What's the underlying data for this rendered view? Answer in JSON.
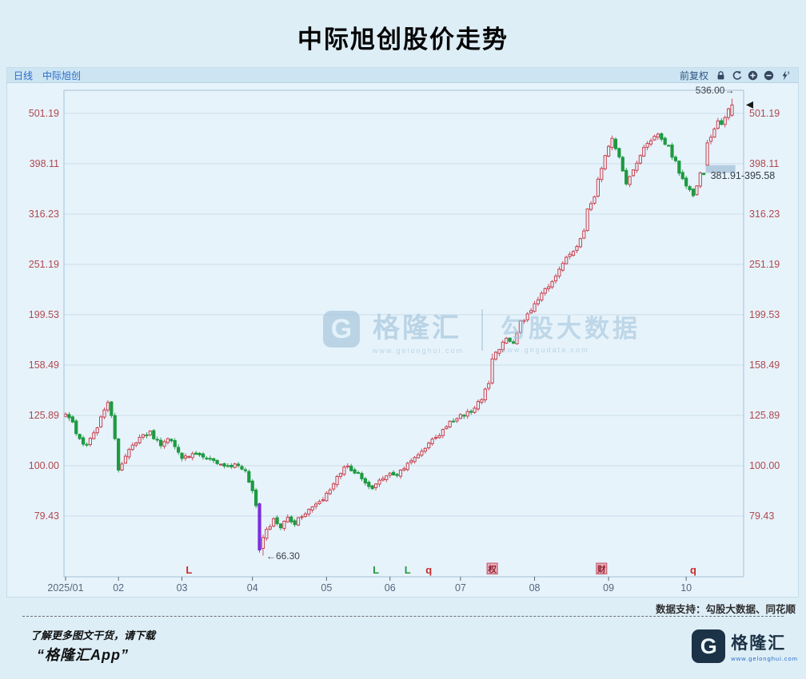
{
  "title": "中际旭创股价走势",
  "toolbar": {
    "period": "日线",
    "stock": "中际旭创",
    "adjust": "前复权",
    "icons": [
      "lock-icon",
      "undo-icon",
      "zoom-in-icon",
      "zoom-out-icon",
      "flash-icon"
    ]
  },
  "chart_data": {
    "type": "candlestick",
    "title": "中际旭创股价走势",
    "scale": "log-y",
    "period": "daily",
    "date_range": [
      "2025/01",
      "2025/10"
    ],
    "ylim": [
      66.3,
      536.0
    ],
    "grid": "horizontal",
    "y_ticks": [
      {
        "label": "501.19",
        "value": 501.19
      },
      {
        "label": "398.11",
        "value": 398.11
      },
      {
        "label": "316.23",
        "value": 316.23
      },
      {
        "label": "251.19",
        "value": 251.19
      },
      {
        "label": "199.53",
        "value": 199.53
      },
      {
        "label": "158.49",
        "value": 158.49
      },
      {
        "label": "125.89",
        "value": 125.89
      },
      {
        "label": "100.00",
        "value": 100.0
      },
      {
        "label": "79.43",
        "value": 79.43
      }
    ],
    "x_ticks": [
      {
        "label": "2025/01",
        "day": 0
      },
      {
        "label": "02",
        "day": 15
      },
      {
        "label": "03",
        "day": 33
      },
      {
        "label": "04",
        "day": 53
      },
      {
        "label": "05",
        "day": 74
      },
      {
        "label": "06",
        "day": 92
      },
      {
        "label": "07",
        "day": 112
      },
      {
        "label": "08",
        "day": 133
      },
      {
        "label": "09",
        "day": 154
      },
      {
        "label": "10",
        "day": 176
      }
    ],
    "anchors": [
      [
        0,
        126
      ],
      [
        2,
        122
      ],
      [
        4,
        112
      ],
      [
        6,
        110
      ],
      [
        8,
        115
      ],
      [
        10,
        124
      ],
      [
        12,
        133
      ],
      [
        13,
        125
      ],
      [
        14,
        112
      ],
      [
        15,
        97.5
      ],
      [
        17,
        105
      ],
      [
        19,
        110
      ],
      [
        21,
        114
      ],
      [
        24,
        116
      ],
      [
        27,
        110
      ],
      [
        30,
        113
      ],
      [
        33,
        103
      ],
      [
        36,
        106
      ],
      [
        40,
        104
      ],
      [
        44,
        101
      ],
      [
        48,
        100
      ],
      [
        51,
        97
      ],
      [
        52,
        93
      ],
      [
        53,
        89
      ],
      [
        54,
        84
      ],
      [
        55,
        68
      ],
      [
        56,
        72
      ],
      [
        57,
        74
      ],
      [
        59,
        78
      ],
      [
        61,
        76
      ],
      [
        63,
        79
      ],
      [
        65,
        77
      ],
      [
        67,
        80
      ],
      [
        70,
        83
      ],
      [
        73,
        86
      ],
      [
        74,
        88
      ],
      [
        76,
        92
      ],
      [
        78,
        97
      ],
      [
        80,
        100
      ],
      [
        83,
        96
      ],
      [
        85,
        92
      ],
      [
        87,
        90
      ],
      [
        89,
        93
      ],
      [
        91,
        95
      ],
      [
        92,
        96
      ],
      [
        94,
        95
      ],
      [
        96,
        99
      ],
      [
        98,
        103
      ],
      [
        100,
        106
      ],
      [
        102,
        108
      ],
      [
        104,
        112
      ],
      [
        106,
        116
      ],
      [
        108,
        120
      ],
      [
        110,
        123
      ],
      [
        112,
        125
      ],
      [
        114,
        127
      ],
      [
        116,
        131
      ],
      [
        118,
        135
      ],
      [
        119,
        141
      ],
      [
        120,
        145
      ],
      [
        121,
        163
      ],
      [
        123,
        172
      ],
      [
        125,
        180
      ],
      [
        127,
        176
      ],
      [
        129,
        192
      ],
      [
        131,
        200
      ],
      [
        133,
        208
      ],
      [
        135,
        222
      ],
      [
        137,
        228
      ],
      [
        139,
        240
      ],
      [
        141,
        255
      ],
      [
        143,
        262
      ],
      [
        145,
        275
      ],
      [
        147,
        290
      ],
      [
        148,
        325
      ],
      [
        150,
        340
      ],
      [
        151,
        370
      ],
      [
        153,
        415
      ],
      [
        155,
        445
      ],
      [
        156,
        430
      ],
      [
        157,
        408
      ],
      [
        159,
        365
      ],
      [
        160,
        375
      ],
      [
        162,
        400
      ],
      [
        164,
        430
      ],
      [
        166,
        440
      ],
      [
        168,
        455
      ],
      [
        169,
        448
      ],
      [
        171,
        430
      ],
      [
        173,
        400
      ],
      [
        175,
        370
      ],
      [
        177,
        350
      ],
      [
        178,
        345
      ],
      [
        179,
        360
      ],
      [
        180,
        378
      ],
      [
        181,
        379
      ],
      [
        182,
        438
      ],
      [
        183,
        452
      ],
      [
        184,
        468
      ],
      [
        185,
        482
      ],
      [
        186,
        478
      ],
      [
        187,
        495
      ],
      [
        188,
        508
      ],
      [
        189,
        521
      ]
    ],
    "specials": [
      {
        "day": 55,
        "open": 84,
        "close": 68,
        "high": 84.5,
        "low": 67.2,
        "color": "highlight"
      },
      {
        "day": 56,
        "open": 68.5,
        "close": 72,
        "high": 73,
        "low": 66.3
      },
      {
        "day": 121,
        "open": 146,
        "close": 163,
        "high": 167,
        "low": 145
      },
      {
        "day": 181,
        "close": 379,
        "high": 381.91
      },
      {
        "day": 182,
        "open": 395.58,
        "low": 395.58,
        "close": 438
      },
      {
        "day": 189,
        "open": 497,
        "close": 521,
        "high": 536.0,
        "low": 494
      }
    ],
    "annotations": {
      "high_label": "536.00→",
      "high_value": 536.0,
      "low_label": "←66.30",
      "low_value": 66.3,
      "gap_label": "381.91-395.58",
      "gap_low": 381.91,
      "gap_high": 395.58,
      "gap_day": 182,
      "last_close": 521
    },
    "event_markers": [
      {
        "day": 35,
        "text": "L",
        "color": "#c42b2b",
        "boxed": false
      },
      {
        "day": 88,
        "text": "L",
        "color": "#1f9a3f",
        "boxed": false
      },
      {
        "day": 97,
        "text": "L",
        "color": "#1f9a3f",
        "boxed": false
      },
      {
        "day": 103,
        "text": "q",
        "color": "#c42b2b",
        "boxed": false
      },
      {
        "day": 121,
        "text": "权",
        "color": "#8d1f2f",
        "boxed": true
      },
      {
        "day": 152,
        "text": "财",
        "color": "#8d1f2f",
        "boxed": true
      },
      {
        "day": 178,
        "text": "q",
        "color": "#c42b2b",
        "boxed": false
      }
    ],
    "colors": {
      "up": "#c9414f",
      "down": "#1d9a41",
      "highlight": "#7c2ee0",
      "grid": "#c9dcea",
      "frame": "#a4c2d6",
      "y_label": "#b0484e",
      "x_label": "#55677c",
      "annotation": "#3a3f4a",
      "gap_box": "#b2cadf",
      "panel_bg": "#e7f3fb"
    }
  },
  "watermark": {
    "brand": "格隆汇",
    "brand_url": "www.gelonghui.com",
    "partner": "勾股大数据",
    "partner_url": "www.gogudata.com",
    "logo_letter": "G"
  },
  "support": "数据支持：勾股大数据、同花顺",
  "footer": {
    "line1": "了解更多图文干货，请下载",
    "line2": "“格隆汇App”",
    "brand": "格隆汇",
    "brand_url": "www.gelonghui.com",
    "logo_letter": "G"
  }
}
